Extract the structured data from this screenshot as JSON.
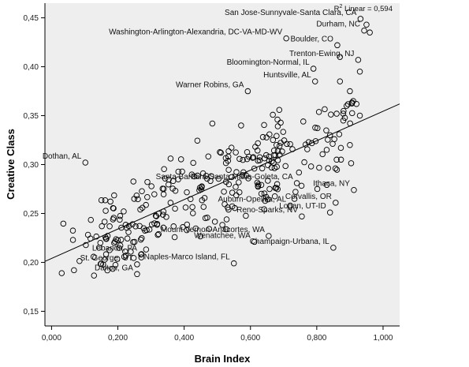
{
  "chart_data": {
    "type": "scatter",
    "xlabel": "Brain Index",
    "ylabel": "Creative Class",
    "xlim": [
      -0.02,
      1.05
    ],
    "ylim": [
      0.135,
      0.465
    ],
    "x_ticks": [
      0.0,
      0.2,
      0.4,
      0.6,
      0.8,
      1.0
    ],
    "x_tick_labels": [
      "0,000",
      "0,200",
      "0,400",
      "0,600",
      "0,800",
      "1,000"
    ],
    "y_ticks": [
      0.15,
      0.2,
      0.25,
      0.3,
      0.35,
      0.4,
      0.45
    ],
    "y_tick_labels": [
      "0,15",
      "0,20",
      "0,25",
      "0,30",
      "0,35",
      "0,40",
      "0,45"
    ],
    "fit_line": {
      "x": [
        -0.02,
        1.05
      ],
      "y": [
        0.201,
        0.362
      ]
    },
    "fit_label_prefix": "R",
    "fit_label_sup": "2",
    "fit_label_suffix": " Linear = 0,594",
    "marker_colors": {
      "background": "#eeeeee",
      "point": "#000000",
      "line": "#000000"
    },
    "labeled_points": [
      {
        "label": "San Jose-Sunnyvale-Santa Clara, CA",
        "x": 0.932,
        "y": 0.449
      },
      {
        "label": "Durham, NC",
        "x": 0.943,
        "y": 0.437
      },
      {
        "label": "Washington-Arlington-Alexandria, DC-VA-MD-WV",
        "x": 0.708,
        "y": 0.429
      },
      {
        "label": "Boulder, CO",
        "x": 0.862,
        "y": 0.422
      },
      {
        "label": "Trenton-Ewing, NJ",
        "x": 0.925,
        "y": 0.407
      },
      {
        "label": "Bloomington-Normal, IL",
        "x": 0.79,
        "y": 0.398
      },
      {
        "label": "Huntsville, AL",
        "x": 0.795,
        "y": 0.385
      },
      {
        "label": "Warner Robins, GA",
        "x": 0.592,
        "y": 0.375
      },
      {
        "label": "Dothan, AL",
        "x": 0.102,
        "y": 0.302
      },
      {
        "label": "Santa Barbara-Santa Maria-Goleta, CA",
        "x": 0.74,
        "y": 0.281
      },
      {
        "label": "Ithaca, NY",
        "x": 0.912,
        "y": 0.274
      },
      {
        "label": "Corvallis, OR",
        "x": 0.857,
        "y": 0.261
      },
      {
        "label": "Auburn-Opelika, AL",
        "x": 0.72,
        "y": 0.258
      },
      {
        "label": "Logan, UT-ID",
        "x": 0.84,
        "y": 0.251
      },
      {
        "label": "Reno-Sparks, NV",
        "x": 0.755,
        "y": 0.247
      },
      {
        "label": "Mount Vernon-Anacortes, WA",
        "x": 0.655,
        "y": 0.227
      },
      {
        "label": "Wenatchee, WA",
        "x": 0.612,
        "y": 0.221
      },
      {
        "label": "Lebanon, PA",
        "x": 0.27,
        "y": 0.208
      },
      {
        "label": "Champaign-Urbana, IL",
        "x": 0.85,
        "y": 0.215
      },
      {
        "label": "St. George, UT",
        "x": 0.258,
        "y": 0.198
      },
      {
        "label": "Naples-Marco Island, FL",
        "x": 0.55,
        "y": 0.199
      },
      {
        "label": "Dalton, GA",
        "x": 0.258,
        "y": 0.188
      }
    ]
  }
}
